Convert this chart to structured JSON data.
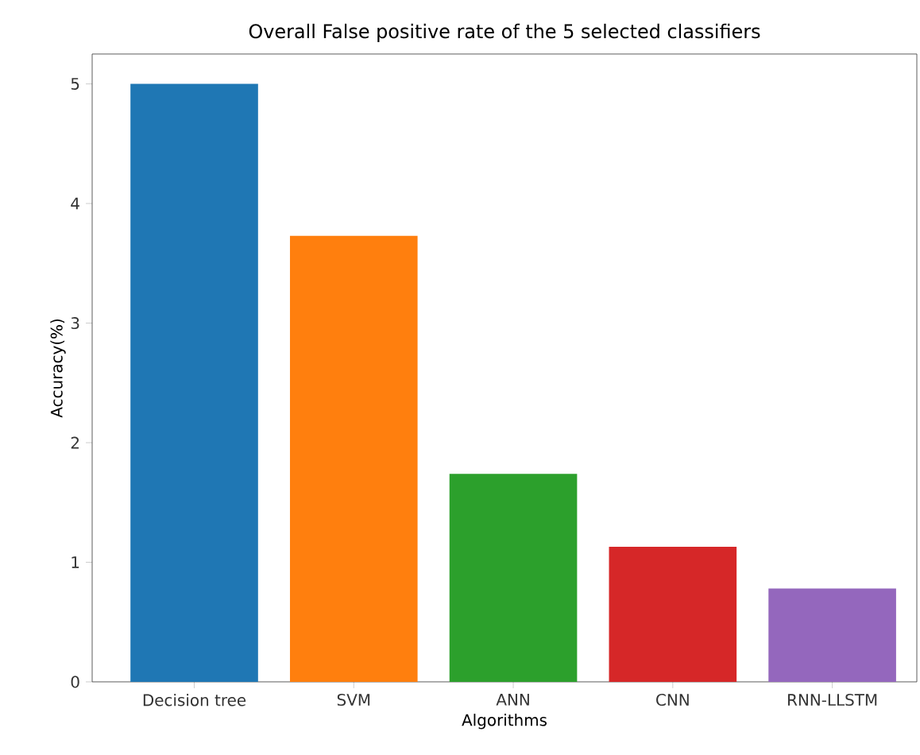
{
  "chart_data": {
    "type": "bar",
    "title": "Overall False positive rate of the 5 selected classifiers",
    "xlabel": "Algorithms",
    "ylabel": "Accuracy(%)",
    "categories": [
      "Decision tree",
      "SVM",
      "ANN",
      "CNN",
      "RNN-LLSTM"
    ],
    "values": [
      5.0,
      3.73,
      1.74,
      1.13,
      0.78
    ],
    "colors": [
      "#1f77b4",
      "#ff7f0e",
      "#2ca02c",
      "#d62728",
      "#9467bd"
    ],
    "ylim": [
      0,
      5.25
    ],
    "yticks": [
      0,
      1,
      2,
      3,
      4,
      5
    ]
  }
}
